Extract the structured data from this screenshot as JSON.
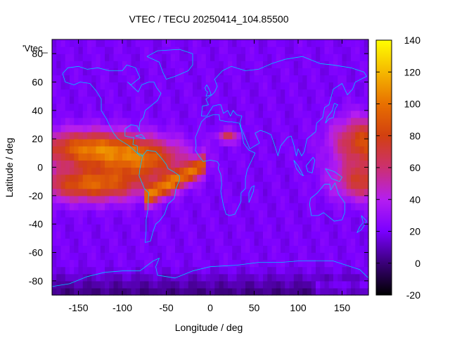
{
  "chart_data": {
    "type": "heatmap",
    "title": "VTEC / TECU 20250414_104.85500",
    "key_label": "'Vtec_",
    "xlabel": "Longitude / deg",
    "ylabel": "Latitude / deg",
    "xlim": [
      -180,
      180
    ],
    "ylim": [
      -90,
      90
    ],
    "x_ticks": [
      -150,
      -100,
      -50,
      0,
      50,
      100,
      150
    ],
    "y_ticks": [
      -80,
      -60,
      -40,
      -20,
      0,
      20,
      40,
      60,
      80
    ],
    "colorbar": {
      "range": [
        -20,
        140
      ],
      "ticks": [
        -20,
        0,
        20,
        40,
        60,
        80,
        100,
        120,
        140
      ],
      "colors": [
        "#000000",
        "#3a0078",
        "#7a00ff",
        "#b51ef0",
        "#cc3070",
        "#d24010",
        "#e87000",
        "#f5b800",
        "#ffff00"
      ]
    },
    "grid": false,
    "overlay": "coastlines",
    "overlay_color": "#00c8ff",
    "field_summary": {
      "background_tecu": 20,
      "features": [
        {
          "region": "equatorial anomaly over East Pacific / Americas",
          "lon_range": [
            -180,
            -40
          ],
          "lat_range": [
            -30,
            35
          ],
          "peak_tecu": 105
        },
        {
          "region": "equatorial band over South Atlantic",
          "lon_range": [
            -70,
            -10
          ],
          "lat_range": [
            -30,
            5
          ],
          "peak_tecu": 90
        },
        {
          "region": "North Africa / Mediterranean",
          "lon_range": [
            10,
            30
          ],
          "lat_range": [
            20,
            27
          ],
          "peak_tecu": 70
        },
        {
          "region": "West Pacific",
          "lon_range": [
            125,
            180
          ],
          "lat_range": [
            -20,
            40
          ],
          "peak_tecu": 85
        },
        {
          "region": "polar minimum (south)",
          "lon_range": [
            -180,
            180
          ],
          "lat_range": [
            -90,
            -75
          ],
          "peak_tecu": 5
        }
      ]
    }
  }
}
